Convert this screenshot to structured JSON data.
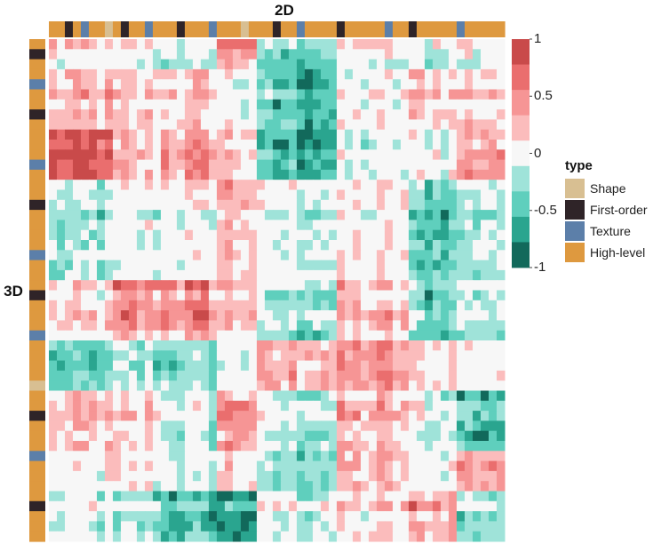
{
  "chart_data": {
    "type": "heatmap",
    "description_rows_label": "3D",
    "description_cols_label": "2D",
    "top_axis_title": "2D",
    "left_axis_title": "3D",
    "color_scale": {
      "min": -1,
      "max": 1,
      "ticks": [
        {
          "value": 1,
          "label": "1"
        },
        {
          "value": 0.5,
          "label": "0.5"
        },
        {
          "value": 0,
          "label": "0"
        },
        {
          "value": -0.5,
          "label": "-0.5"
        },
        {
          "value": -1,
          "label": "-1"
        }
      ],
      "bins": [
        {
          "lo": 0.8,
          "hi": 1.0,
          "color": "#c94a4a"
        },
        {
          "lo": 0.6,
          "hi": 0.8,
          "color": "#ea6e6e"
        },
        {
          "lo": 0.4,
          "hi": 0.6,
          "color": "#f69595"
        },
        {
          "lo": 0.2,
          "hi": 0.4,
          "color": "#fbbcbc"
        },
        {
          "lo": -0.2,
          "hi": 0.2,
          "color": "#f7f7f7"
        },
        {
          "lo": -0.4,
          "hi": -0.2,
          "color": "#9fe3d9"
        },
        {
          "lo": -0.6,
          "hi": -0.4,
          "color": "#5fcfbd"
        },
        {
          "lo": -0.8,
          "hi": -0.6,
          "color": "#2aa58f"
        },
        {
          "lo": -1.0,
          "hi": -0.8,
          "color": "#12695b"
        }
      ]
    },
    "legend": {
      "title": "type",
      "entries": [
        {
          "name": "Shape",
          "color": "#d8bf92"
        },
        {
          "name": "First-order",
          "color": "#2f2428"
        },
        {
          "name": "Texture",
          "color": "#5c7fa9"
        },
        {
          "name": "High-level",
          "color": "#de993f"
        }
      ]
    },
    "col_blocks": [
      {
        "count": 8,
        "mean": 0.1
      },
      {
        "count": 6,
        "mean": -0.05
      },
      {
        "count": 7,
        "mean": -0.25
      },
      {
        "count": 5,
        "mean": 0.1
      },
      {
        "count": 10,
        "mean": -0.35
      },
      {
        "count": 9,
        "mean": -0.15
      },
      {
        "count": 6,
        "mean": 0.2
      },
      {
        "count": 6,
        "mean": 0.05
      }
    ],
    "row_blocks": [
      {
        "count": 3,
        "mean": -0.1
      },
      {
        "count": 6,
        "mean": 0.15
      },
      {
        "count": 5,
        "mean": 0.1
      },
      {
        "count": 10,
        "mean": -0.2
      },
      {
        "count": 6,
        "mean": 0.0
      },
      {
        "count": 5,
        "mean": -0.1
      },
      {
        "count": 6,
        "mean": 0.0
      },
      {
        "count": 4,
        "mean": -0.05
      },
      {
        "count": 5,
        "mean": -0.1
      }
    ],
    "block_correlations": [
      [
        0.1,
        -0.05,
        -0.15,
        0.45,
        -0.4,
        0.0,
        -0.1,
        0.05
      ],
      [
        0.35,
        0.25,
        0.3,
        0.05,
        -0.45,
        0.05,
        0.25,
        0.35
      ],
      [
        0.8,
        0.25,
        0.45,
        0.25,
        -0.6,
        -0.1,
        0.0,
        0.4
      ],
      [
        -0.3,
        -0.05,
        0.0,
        0.3,
        -0.1,
        0.05,
        -0.5,
        -0.2
      ],
      [
        0.1,
        0.45,
        0.5,
        0.3,
        -0.3,
        0.2,
        -0.4,
        -0.2
      ],
      [
        -0.55,
        -0.35,
        -0.35,
        -0.1,
        0.3,
        0.4,
        0.1,
        0.0
      ],
      [
        0.2,
        0.1,
        -0.2,
        0.45,
        -0.25,
        0.25,
        -0.1,
        -0.55
      ],
      [
        -0.1,
        0.0,
        -0.25,
        0.1,
        -0.45,
        0.2,
        -0.05,
        0.4
      ],
      [
        -0.05,
        -0.25,
        -0.5,
        -0.65,
        -0.05,
        0.15,
        0.4,
        -0.25
      ]
    ],
    "col_annotation_types": [
      "High-level",
      "High-level",
      "First-order",
      "High-level",
      "Texture",
      "High-level",
      "High-level",
      "Shape",
      "High-level",
      "First-order",
      "High-level",
      "High-level",
      "Texture",
      "High-level",
      "High-level",
      "High-level",
      "First-order",
      "High-level",
      "High-level",
      "High-level",
      "Texture",
      "High-level",
      "High-level",
      "High-level",
      "Shape",
      "High-level",
      "High-level",
      "High-level",
      "First-order",
      "High-level",
      "High-level",
      "Texture",
      "High-level",
      "High-level",
      "High-level",
      "High-level",
      "First-order",
      "High-level",
      "High-level",
      "High-level",
      "High-level",
      "High-level",
      "Texture",
      "High-level",
      "High-level",
      "First-order",
      "High-level",
      "High-level",
      "High-level",
      "High-level",
      "High-level",
      "Texture",
      "High-level",
      "High-level",
      "High-level",
      "High-level",
      "High-level"
    ],
    "row_annotation_types": [
      "High-level",
      "First-order",
      "High-level",
      "High-level",
      "Texture",
      "High-level",
      "High-level",
      "First-order",
      "High-level",
      "High-level",
      "High-level",
      "High-level",
      "Texture",
      "High-level",
      "High-level",
      "High-level",
      "First-order",
      "High-level",
      "High-level",
      "High-level",
      "High-level",
      "Texture",
      "High-level",
      "High-level",
      "High-level",
      "First-order",
      "High-level",
      "High-level",
      "High-level",
      "Texture",
      "High-level",
      "High-level",
      "High-level",
      "High-level",
      "Shape",
      "High-level",
      "High-level",
      "First-order",
      "High-level",
      "High-level",
      "High-level",
      "Texture",
      "High-level",
      "High-level",
      "High-level",
      "High-level",
      "First-order",
      "High-level",
      "High-level",
      "High-level"
    ]
  }
}
